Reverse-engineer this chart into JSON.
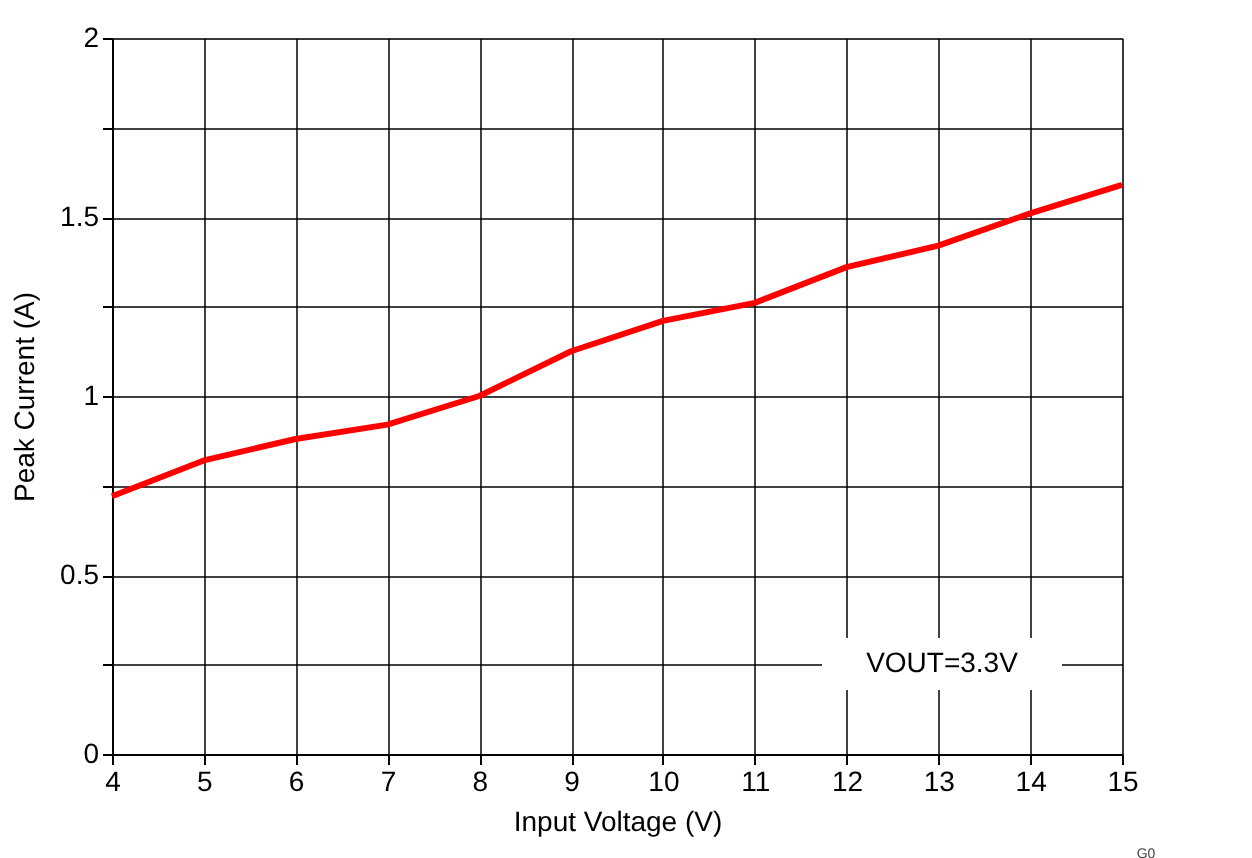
{
  "chart_data": {
    "type": "line",
    "xlabel": "Input Voltage (V)",
    "ylabel": "Peak Current (A)",
    "x": [
      4,
      5,
      6,
      7,
      8,
      9,
      10,
      11,
      12,
      13,
      14,
      15
    ],
    "series": [
      {
        "color": "#ff0000",
        "values": [
          0.72,
          0.82,
          0.88,
          0.92,
          1.0,
          1.125,
          1.21,
          1.26,
          1.36,
          1.42,
          1.51,
          1.59
        ]
      }
    ],
    "xlim": [
      4,
      15
    ],
    "xticks": [
      4,
      5,
      6,
      7,
      8,
      9,
      10,
      11,
      12,
      13,
      14,
      15
    ],
    "ylim": [
      0,
      2
    ],
    "yticks": [
      0,
      {
        "value": 0.25,
        "label": null
      },
      0.5,
      {
        "value": 0.75,
        "label": null
      },
      1,
      {
        "value": 1.25,
        "label": null
      },
      1.5,
      {
        "value": 1.75,
        "label": null
      },
      2
    ],
    "grid": true,
    "legend": false,
    "marker": "none",
    "line_style": "solid",
    "annotations": [
      "VOUT=3.3V",
      "G0"
    ]
  }
}
